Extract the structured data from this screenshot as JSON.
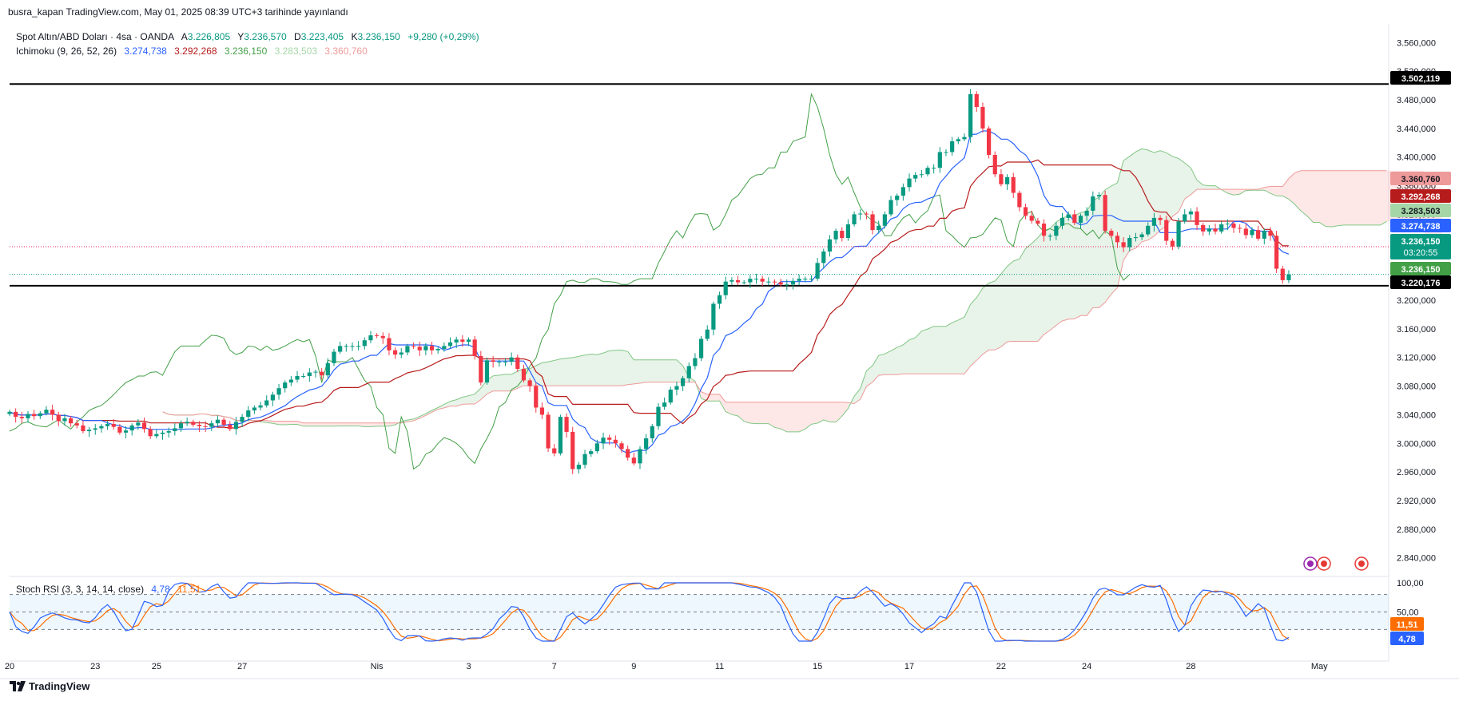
{
  "header": {
    "published": "busra_kapan TradingView.com, May 01, 2025 08:39 UTC+3 tarihinde yayınlandı",
    "symbol": "Spot Altın/ABD Doları · 4sa · OANDA",
    "open_label": "A",
    "open": "3.226,805",
    "high_label": "Y",
    "high": "3.236,570",
    "low_label": "D",
    "low": "3.223,405",
    "close_label": "K",
    "close": "3.236,150",
    "change": "+9,280 (+0,29%)",
    "ichimoku_label": "Ichimoku (9, 26, 52, 26)",
    "ichimoku_values": [
      "3.274,738",
      "3.292,268",
      "3.236,150",
      "3.283,503",
      "3.360,760"
    ],
    "ichimoku_colors": [
      "#2962ff",
      "#b71c1c",
      "#43a047",
      "#a5d6a7",
      "#ef9a9a"
    ]
  },
  "stoch": {
    "label": "Stoch RSI (3, 3, 14, 14, close)",
    "k": "4,78",
    "d": "11,51",
    "k_color": "#2962ff",
    "d_color": "#ff6d00"
  },
  "price_tags": [
    {
      "value": 3502.119,
      "text": "3.502,119",
      "bg": "#000000",
      "fg": "#ffffff"
    },
    {
      "value": 3360.76,
      "text": "3.360,760",
      "bg": "#ef9a9a",
      "fg": "#131722"
    },
    {
      "value": 3292.268,
      "text": "3.292,268",
      "bg": "#b71c1c",
      "fg": "#ffffff"
    },
    {
      "value": 3283.503,
      "text": "3.283,503",
      "bg": "#a5d6a7",
      "fg": "#131722"
    },
    {
      "value": 3274.738,
      "text": "3.274,738",
      "bg": "#2962ff",
      "fg": "#ffffff"
    },
    {
      "value": 3236.15,
      "text": "3.236,150",
      "bg": "#089981",
      "fg": "#ffffff",
      "sub": "03:20:55"
    },
    {
      "value": 3236.15,
      "text": "3.236,150",
      "bg": "#43a047",
      "fg": "#ffffff"
    },
    {
      "value": 3220.176,
      "text": "3.220,176",
      "bg": "#000000",
      "fg": "#ffffff"
    }
  ],
  "stoch_tags": [
    {
      "value": 11.51,
      "text": "11,51",
      "bg": "#ff6d00"
    },
    {
      "value": 4.78,
      "text": "4,78",
      "bg": "#2962ff"
    }
  ],
  "footer": {
    "brand": "TradingView"
  },
  "chart_data": {
    "type": "candlestick",
    "title": "Spot Altın/ABD Doları · 4sa · OANDA",
    "yticks": [
      "3.560,000",
      "3.520,000",
      "3.480,000",
      "3.440,000",
      "3.400,000",
      "3.360,000",
      "3.320,000",
      "3.280,000",
      "3.240,000",
      "3.200,000",
      "3.160,000",
      "3.120,000",
      "3.080,000",
      "3.040,000",
      "3.000,000",
      "2.960,000",
      "2.920,000",
      "2.880,000",
      "2.840,000"
    ],
    "ytick_values": [
      3560,
      3520,
      3480,
      3440,
      3400,
      3360,
      3320,
      3280,
      3240,
      3200,
      3160,
      3120,
      3080,
      3040,
      3000,
      2960,
      2920,
      2880,
      2840
    ],
    "ylim": [
      2814,
      3586
    ],
    "xticks": [
      "20",
      "23",
      "25",
      "27",
      "Nis",
      "3",
      "7",
      "9",
      "11",
      "15",
      "17",
      "22",
      "24",
      "28",
      "May"
    ],
    "xtick_index": [
      0,
      14,
      24,
      38,
      60,
      75,
      89,
      102,
      116,
      132,
      147,
      162,
      176,
      193,
      214
    ],
    "horizontal_lines": [
      3502.119,
      3220.176
    ],
    "close": [
      3044,
      3037,
      3035,
      3041,
      3038,
      3042,
      3047,
      3040,
      3031,
      3035,
      3028,
      3025,
      3017,
      3019,
      3021,
      3024,
      3027,
      3023,
      3015,
      3018,
      3025,
      3029,
      3020,
      3010,
      3013,
      3015,
      3017,
      3021,
      3028,
      3030,
      3026,
      3024,
      3023,
      3028,
      3033,
      3026,
      3020,
      3030,
      3037,
      3046,
      3050,
      3053,
      3060,
      3068,
      3077,
      3085,
      3089,
      3094,
      3094,
      3099,
      3100,
      3095,
      3112,
      3128,
      3136,
      3136,
      3136,
      3136,
      3144,
      3151,
      3150,
      3147,
      3130,
      3124,
      3127,
      3136,
      3135,
      3130,
      3136,
      3130,
      3132,
      3136,
      3141,
      3145,
      3142,
      3145,
      3122,
      3085,
      3116,
      3114,
      3114,
      3114,
      3120,
      3104,
      3088,
      3080,
      3050,
      3040,
      2993,
      2986,
      3037,
      3016,
      2964,
      2970,
      2985,
      2989,
      3000,
      3008,
      3005,
      3000,
      2992,
      2980,
      2972,
      2992,
      3007,
      3024,
      3051,
      3057,
      3075,
      3080,
      3091,
      3108,
      3119,
      3146,
      3159,
      3195,
      3207,
      3226,
      3228,
      3225,
      3225,
      3230,
      3230,
      3226,
      3226,
      3225,
      3222,
      3222,
      3227,
      3230,
      3230,
      3230,
      3252,
      3268,
      3285,
      3297,
      3287,
      3306,
      3320,
      3321,
      3320,
      3298,
      3304,
      3320,
      3340,
      3346,
      3358,
      3370,
      3375,
      3376,
      3385,
      3385,
      3407,
      3407,
      3422,
      3425,
      3428,
      3488,
      3470,
      3440,
      3403,
      3376,
      3362,
      3372,
      3350,
      3330,
      3318,
      3311,
      3307,
      3290,
      3290,
      3304,
      3315,
      3320,
      3308,
      3318,
      3325,
      3345,
      3347,
      3297,
      3290,
      3281,
      3274,
      3287,
      3288,
      3292,
      3304,
      3315,
      3312,
      3283,
      3275,
      3310,
      3320,
      3324,
      3305,
      3296,
      3300,
      3296,
      3306,
      3307,
      3301,
      3300,
      3291,
      3298,
      3286,
      3297,
      3290,
      3244,
      3228,
      3236
    ]
  }
}
